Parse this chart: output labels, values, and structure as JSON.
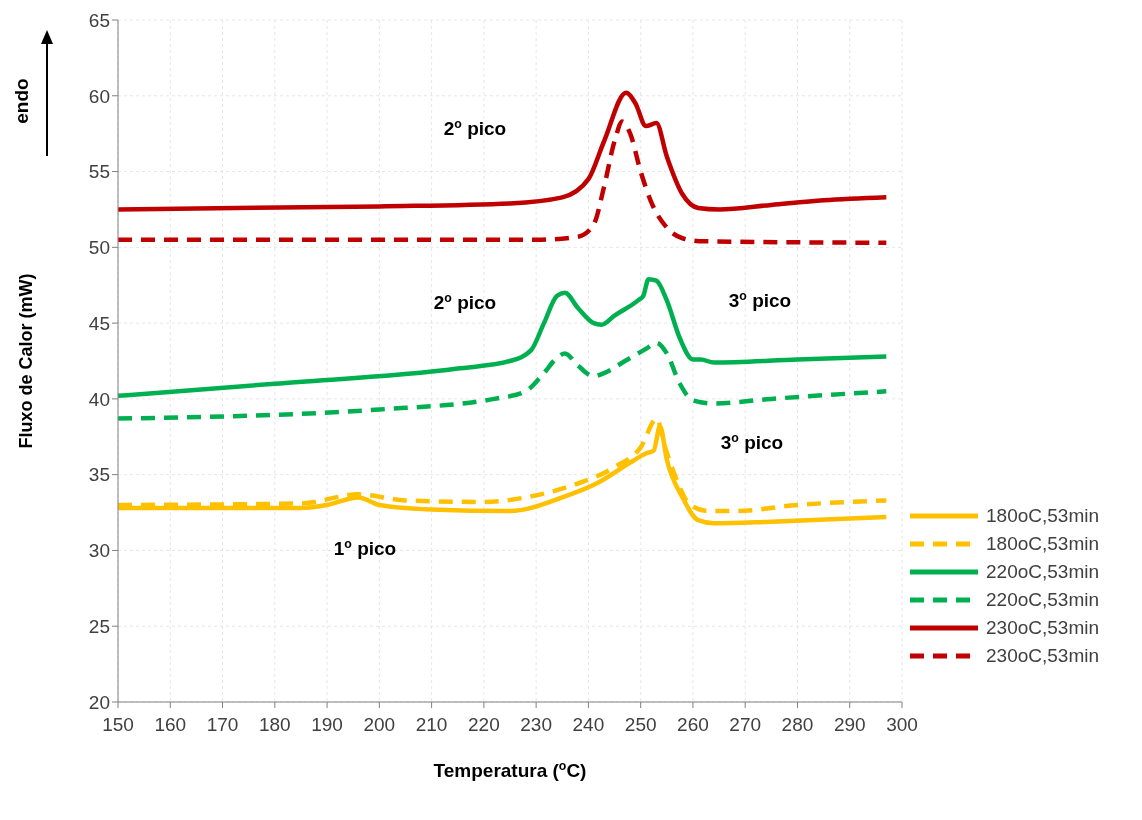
{
  "chart_data": {
    "type": "line",
    "xlabel": "Temperatura ($^{o}$C)",
    "ylabel": "Fluxo de Calor (mW)",
    "xlim": [
      150,
      300
    ],
    "xticks": [
      150,
      160,
      170,
      180,
      190,
      200,
      210,
      220,
      230,
      240,
      250,
      260,
      270,
      280,
      290,
      300
    ],
    "ylim": [
      20,
      65
    ],
    "yticks": [
      20,
      25,
      30,
      35,
      40,
      45,
      50,
      55,
      60,
      65
    ],
    "grid": true,
    "legend": "bottom right",
    "marker": "none",
    "annotations": [
      "endo",
      "2$^{o}$ pico",
      "2$^{o}$ pico",
      "3$^{o}$ pico",
      "3$^{o}$ pico",
      "1$^{o}$ pico"
    ],
    "series": [
      {
        "name": "180oC,53min",
        "color": "#ffc000",
        "line_style": "solid",
        "x": [
          150,
          185,
          190,
          196,
          200,
          210,
          225,
          235,
          242,
          248,
          251,
          252.5,
          253.7,
          255,
          258,
          261,
          264,
          275,
          297
        ],
        "values": [
          32.8,
          32.8,
          33,
          33.5,
          33,
          32.7,
          32.6,
          33.5,
          34.5,
          35.8,
          36.4,
          36.6,
          38.2,
          36,
          33.5,
          32,
          31.8,
          31.9,
          32.2
        ]
      },
      {
        "name": "180oC,53min",
        "color": "#ffc000",
        "line_style": "dashed",
        "x": [
          150,
          185,
          196,
          205,
          220,
          228,
          237,
          245,
          250,
          253.1,
          254.5,
          256.5,
          259.5,
          263,
          268,
          280,
          297
        ],
        "values": [
          33,
          33.1,
          33.7,
          33.3,
          33.2,
          33.5,
          34.3,
          35.5,
          36.8,
          38.7,
          37,
          35,
          33,
          32.6,
          32.6,
          33,
          33.3
        ]
      },
      {
        "name": "220oC,53min",
        "color": "#00b050",
        "line_style": "solid",
        "x": [
          150,
          180,
          215,
          225,
          229,
          231.5,
          234,
          235.5,
          238,
          241,
          242.5,
          245,
          249.5,
          250.5,
          251.5,
          253,
          255,
          257.5,
          260,
          261.5,
          264,
          280,
          297
        ],
        "values": [
          40.2,
          41,
          42,
          42.5,
          43.2,
          45,
          46.8,
          47,
          46,
          45,
          44.9,
          45.5,
          46.5,
          46.8,
          47.9,
          47.8,
          46.5,
          44,
          42.6,
          42.6,
          42.4,
          42.6,
          42.8
        ]
      },
      {
        "name": "220oC,53min",
        "color": "#00b050",
        "line_style": "dashed",
        "x": [
          150,
          200,
          222,
          228,
          231,
          234,
          235.5,
          238,
          241,
          243,
          247,
          251,
          253,
          255,
          257.5,
          260,
          264,
          275,
          297
        ],
        "values": [
          38.7,
          39.3,
          40,
          40.5,
          41.5,
          42.7,
          43,
          42.2,
          41.5,
          41.7,
          42.5,
          43.3,
          43.7,
          43,
          41,
          39.9,
          39.7,
          40,
          40.5
        ]
      },
      {
        "name": "230oC,53min",
        "color": "#c00000",
        "line_style": "solid",
        "x": [
          150,
          200,
          225,
          235,
          240,
          243,
          247.2,
          249,
          251,
          253,
          255,
          258,
          261,
          265,
          275,
          285,
          297
        ],
        "values": [
          52.5,
          52.7,
          52.9,
          53.3,
          54.5,
          57,
          60.2,
          59.5,
          58,
          58.2,
          56,
          53.5,
          52.6,
          52.5,
          52.8,
          53.1,
          53.3
        ]
      },
      {
        "name": "230oC,53min",
        "color": "#c00000",
        "line_style": "dashed",
        "x": [
          150,
          230,
          238,
          241,
          243,
          245,
          246.5,
          248,
          250,
          252,
          255,
          258,
          262,
          297
        ],
        "values": [
          50.5,
          50.5,
          50.7,
          51.5,
          54,
          57,
          58.3,
          57.5,
          55,
          53,
          51.3,
          50.6,
          50.4,
          50.3
        ]
      }
    ]
  }
}
